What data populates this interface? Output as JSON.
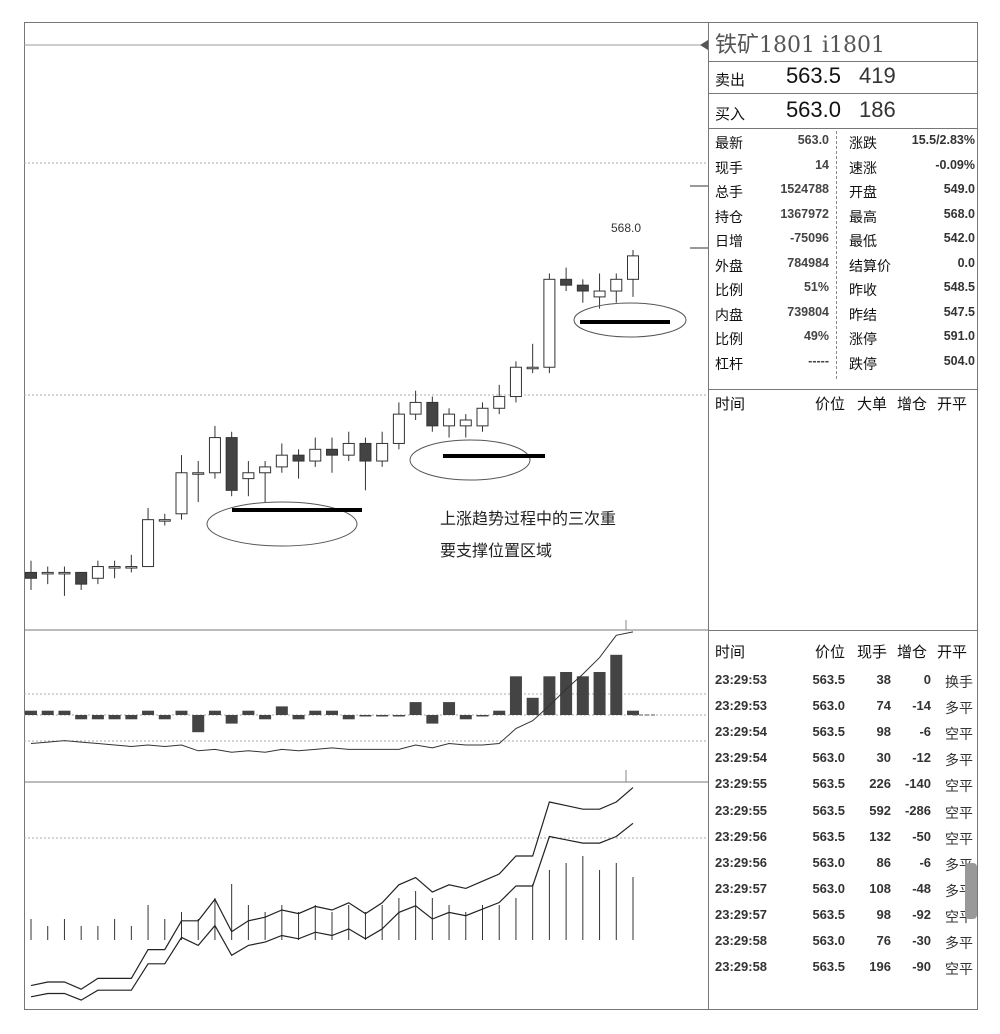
{
  "header": {
    "title": "铁矿1801  i1801",
    "sell_label": "卖出",
    "sell_price": "563.5",
    "sell_vol": "419",
    "buy_label": "买入",
    "buy_price": "563.0",
    "buy_vol": "186"
  },
  "stats": [
    {
      "l1": "最新",
      "v1": "563.0",
      "l2": "涨跌",
      "v2": "15.5/2.83%"
    },
    {
      "l1": "现手",
      "v1": "14",
      "l2": "速涨",
      "v2": "-0.09%"
    },
    {
      "l1": "总手",
      "v1": "1524788",
      "l2": "开盘",
      "v2": "549.0"
    },
    {
      "l1": "持仓",
      "v1": "1367972",
      "l2": "最高",
      "v2": "568.0"
    },
    {
      "l1": "日增",
      "v1": "-75096",
      "l2": "最低",
      "v2": "542.0"
    },
    {
      "l1": "外盘",
      "v1": "784984",
      "l2": "结算价",
      "v2": "0.0"
    },
    {
      "l1": "比例",
      "v1": "51%",
      "l2": "昨收",
      "v2": "548.5"
    },
    {
      "l1": "内盘",
      "v1": "739804",
      "l2": "昨结",
      "v2": "547.5"
    },
    {
      "l1": "比例",
      "v1": "49%",
      "l2": "涨停",
      "v2": "591.0"
    },
    {
      "l1": "杠杆",
      "v1": "-----",
      "l2": "跌停",
      "v2": "504.0"
    }
  ],
  "big_order_header": {
    "time": "时间",
    "price": "价位",
    "big": "大单",
    "chg": "增仓",
    "type": "开平"
  },
  "tick_header": {
    "time": "时间",
    "price": "价位",
    "vol": "现手",
    "chg": "增仓",
    "type": "开平"
  },
  "ticks": [
    {
      "time": "23:29:53",
      "price": "563.5",
      "vol": "38",
      "chg": "0",
      "type": "换手"
    },
    {
      "time": "23:29:53",
      "price": "563.0",
      "vol": "74",
      "chg": "-14",
      "type": "多平"
    },
    {
      "time": "23:29:54",
      "price": "563.5",
      "vol": "98",
      "chg": "-6",
      "type": "空平"
    },
    {
      "time": "23:29:54",
      "price": "563.0",
      "vol": "30",
      "chg": "-12",
      "type": "多平"
    },
    {
      "time": "23:29:55",
      "price": "563.5",
      "vol": "226",
      "chg": "-140",
      "type": "空平"
    },
    {
      "time": "23:29:55",
      "price": "563.5",
      "vol": "592",
      "chg": "-286",
      "type": "空平"
    },
    {
      "time": "23:29:56",
      "price": "563.5",
      "vol": "132",
      "chg": "-50",
      "type": "空平"
    },
    {
      "time": "23:29:56",
      "price": "563.0",
      "vol": "86",
      "chg": "-6",
      "type": "多平"
    },
    {
      "time": "23:29:57",
      "price": "563.0",
      "vol": "108",
      "chg": "-48",
      "type": "多平"
    },
    {
      "time": "23:29:57",
      "price": "563.5",
      "vol": "98",
      "chg": "-92",
      "type": "空平"
    },
    {
      "time": "23:29:58",
      "price": "563.0",
      "vol": "76",
      "chg": "-30",
      "type": "多平"
    },
    {
      "time": "23:29:58",
      "price": "563.5",
      "vol": "196",
      "chg": "-90",
      "type": "空平"
    }
  ],
  "annotation": {
    "line1": "上涨趋势过程中的三次重",
    "line2": "要支撑位置区域"
  },
  "peak_label": "568.0",
  "chart_data": {
    "type": "candlestick",
    "candles": [
      {
        "o": 513,
        "c": 512,
        "h": 515,
        "l": 510
      },
      {
        "o": 513,
        "c": 513,
        "h": 514,
        "l": 511
      },
      {
        "o": 513,
        "c": 513,
        "h": 514,
        "l": 509
      },
      {
        "o": 513,
        "c": 511,
        "h": 513,
        "l": 510
      },
      {
        "o": 512,
        "c": 514,
        "h": 515,
        "l": 511
      },
      {
        "o": 514,
        "c": 514,
        "h": 515,
        "l": 512
      },
      {
        "o": 514,
        "c": 514,
        "h": 516,
        "l": 513
      },
      {
        "o": 514,
        "c": 522,
        "h": 524,
        "l": 514
      },
      {
        "o": 522,
        "c": 522,
        "h": 523,
        "l": 521
      },
      {
        "o": 523,
        "c": 530,
        "h": 533,
        "l": 522
      },
      {
        "o": 530,
        "c": 530,
        "h": 532,
        "l": 525
      },
      {
        "o": 530,
        "c": 536,
        "h": 538,
        "l": 529
      },
      {
        "o": 536,
        "c": 527,
        "h": 537,
        "l": 526
      },
      {
        "o": 529,
        "c": 530,
        "h": 532,
        "l": 526
      },
      {
        "o": 530,
        "c": 531,
        "h": 532,
        "l": 525
      },
      {
        "o": 531,
        "c": 533,
        "h": 535,
        "l": 530
      },
      {
        "o": 533,
        "c": 532,
        "h": 534,
        "l": 529
      },
      {
        "o": 532,
        "c": 534,
        "h": 536,
        "l": 531
      },
      {
        "o": 534,
        "c": 533,
        "h": 536,
        "l": 530
      },
      {
        "o": 533,
        "c": 535,
        "h": 537,
        "l": 532
      },
      {
        "o": 535,
        "c": 532,
        "h": 536,
        "l": 527
      },
      {
        "o": 532,
        "c": 535,
        "h": 537,
        "l": 531
      },
      {
        "o": 535,
        "c": 540,
        "h": 542,
        "l": 534
      },
      {
        "o": 540,
        "c": 542,
        "h": 544,
        "l": 539
      },
      {
        "o": 542,
        "c": 538,
        "h": 543,
        "l": 537
      },
      {
        "o": 538,
        "c": 540,
        "h": 541,
        "l": 536
      },
      {
        "o": 538,
        "c": 539,
        "h": 540,
        "l": 536
      },
      {
        "o": 538,
        "c": 541,
        "h": 542,
        "l": 537
      },
      {
        "o": 541,
        "c": 543,
        "h": 545,
        "l": 540
      },
      {
        "o": 543,
        "c": 548,
        "h": 549,
        "l": 542
      },
      {
        "o": 548,
        "c": 548,
        "h": 552,
        "l": 547
      },
      {
        "o": 548,
        "c": 563,
        "h": 564,
        "l": 547
      },
      {
        "o": 563,
        "c": 562,
        "h": 565,
        "l": 561
      },
      {
        "o": 562,
        "c": 561,
        "h": 563,
        "l": 559
      },
      {
        "o": 560,
        "c": 561,
        "h": 564,
        "l": 558
      },
      {
        "o": 561,
        "c": 563,
        "h": 564,
        "l": 559
      },
      {
        "o": 563,
        "c": 567,
        "h": 568,
        "l": 560
      }
    ],
    "volume": [
      3,
      2,
      3,
      2,
      2,
      3,
      2,
      5,
      3,
      4,
      3,
      6,
      8,
      5,
      4,
      5,
      4,
      5,
      4,
      5,
      4,
      5,
      6,
      7,
      6,
      5,
      4,
      5,
      5,
      6,
      8,
      10,
      11,
      12,
      10,
      11,
      9
    ],
    "open_interest": [
      1,
      1,
      1,
      -1,
      -1,
      -1,
      -1,
      1,
      -1,
      1,
      -4,
      1,
      -2,
      1,
      -1,
      2,
      -1,
      1,
      1,
      -1,
      0,
      0,
      0,
      3,
      -2,
      3,
      -1,
      0,
      1,
      9,
      4,
      9,
      10,
      9,
      10,
      14,
      1
    ],
    "support_zones": 3
  }
}
